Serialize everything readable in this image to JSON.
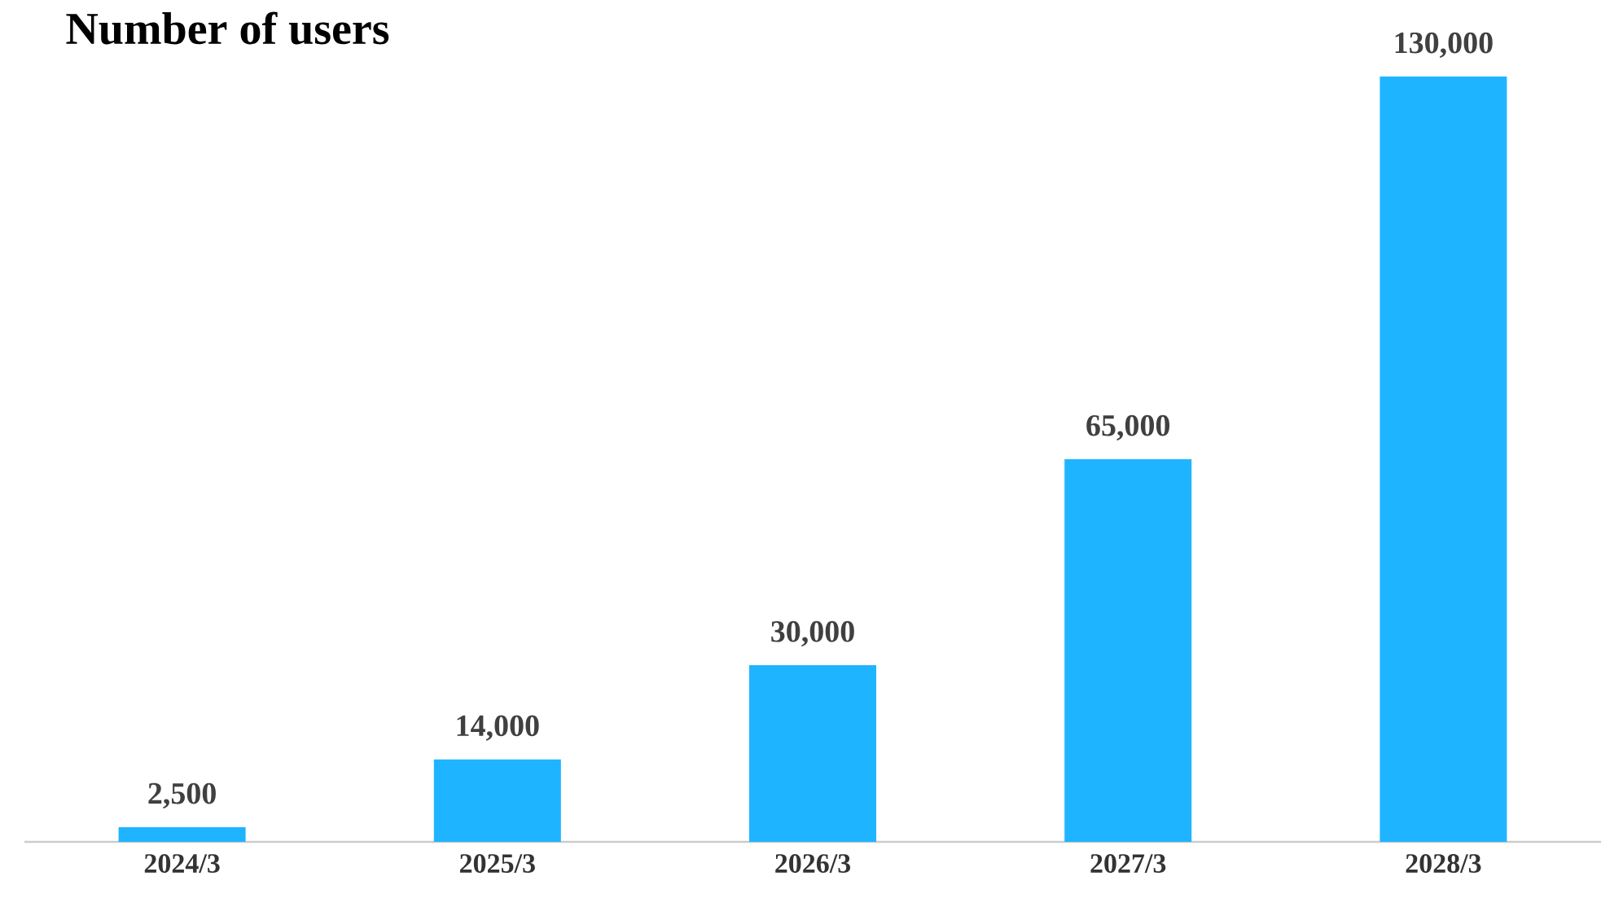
{
  "chart_data": {
    "type": "bar",
    "title": "Number of users",
    "categories": [
      "2024/3",
      "2025/3",
      "2026/3",
      "2027/3",
      "2028/3"
    ],
    "values": [
      2500,
      14000,
      30000,
      65000,
      130000
    ],
    "value_labels": [
      "2,500",
      "14,000",
      "30,000",
      "65,000",
      "130,000"
    ],
    "color": "#1fb4ff",
    "tick_labels": "x"
  }
}
